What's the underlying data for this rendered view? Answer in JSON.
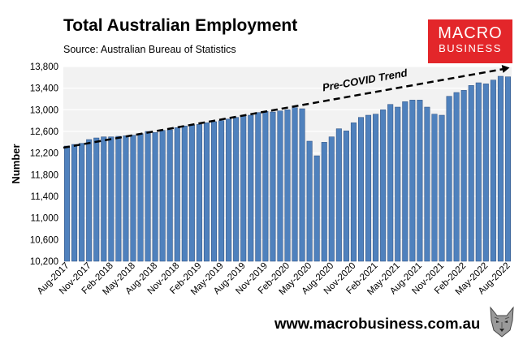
{
  "header": {
    "title": "Total Australian Employment",
    "subtitle": "Source: Australian Bureau of Statistics"
  },
  "logo": {
    "line1": "MACRO",
    "line2": "BUSINESS"
  },
  "footer": {
    "url": "www.macrobusiness.com.au",
    "mascot_icon": "wolf-icon"
  },
  "colors": {
    "bar": "#4f81bd",
    "bar_border": "#2f4f7f",
    "plot_bg": "#f2f2f2",
    "grid": "#ffffff",
    "logo": "#e3262a"
  },
  "chart_data": {
    "type": "bar",
    "title": "Total Australian Employment",
    "ylabel": "Number",
    "xlabel": "",
    "ylim": [
      10200,
      13800
    ],
    "yticks": [
      10200,
      10600,
      11000,
      11400,
      11800,
      12200,
      12600,
      13000,
      13400,
      13800
    ],
    "ytick_labels": [
      "10,200",
      "10,600",
      "11,000",
      "11,400",
      "11,800",
      "12,200",
      "12,600",
      "13,000",
      "13,400",
      "13,800"
    ],
    "grid": true,
    "categories": [
      "Aug-2017",
      "Sep-2017",
      "Oct-2017",
      "Nov-2017",
      "Dec-2017",
      "Jan-2018",
      "Feb-2018",
      "Mar-2018",
      "Apr-2018",
      "May-2018",
      "Jun-2018",
      "Jul-2018",
      "Aug-2018",
      "Sep-2018",
      "Oct-2018",
      "Nov-2018",
      "Dec-2018",
      "Jan-2019",
      "Feb-2019",
      "Mar-2019",
      "Apr-2019",
      "May-2019",
      "Jun-2019",
      "Jul-2019",
      "Aug-2019",
      "Sep-2019",
      "Oct-2019",
      "Nov-2019",
      "Dec-2019",
      "Jan-2020",
      "Feb-2020",
      "Mar-2020",
      "Apr-2020",
      "May-2020",
      "Jun-2020",
      "Jul-2020",
      "Aug-2020",
      "Sep-2020",
      "Oct-2020",
      "Nov-2020",
      "Dec-2020",
      "Jan-2021",
      "Feb-2021",
      "Mar-2021",
      "Apr-2021",
      "May-2021",
      "Jun-2021",
      "Jul-2021",
      "Aug-2021",
      "Sep-2021",
      "Oct-2021",
      "Nov-2021",
      "Dec-2021",
      "Jan-2022",
      "Feb-2022",
      "Mar-2022",
      "Apr-2022",
      "May-2022",
      "Jun-2022",
      "Jul-2022",
      "Aug-2022"
    ],
    "tick_labels": [
      "Aug-2017",
      "Nov-2017",
      "Feb-2018",
      "May-2018",
      "Aug-2018",
      "Nov-2018",
      "Feb-2019",
      "May-2019",
      "Aug-2019",
      "Nov-2019",
      "Feb-2020",
      "May-2020",
      "Aug-2020",
      "Nov-2020",
      "Feb-2021",
      "May-2021",
      "Aug-2021",
      "Nov-2021",
      "Feb-2022",
      "May-2022",
      "Aug-2022"
    ],
    "series": [
      {
        "name": "Employment",
        "values": [
          12330,
          12360,
          12380,
          12450,
          12480,
          12500,
          12500,
          12510,
          12520,
          12530,
          12560,
          12600,
          12580,
          12620,
          12630,
          12670,
          12700,
          12720,
          12730,
          12760,
          12780,
          12800,
          12830,
          12860,
          12880,
          12900,
          12950,
          12970,
          12960,
          12980,
          13000,
          13040,
          13020,
          12420,
          12150,
          12400,
          12500,
          12650,
          12610,
          12760,
          12860,
          12900,
          12920,
          13000,
          13100,
          13050,
          13150,
          13180,
          13180,
          13050,
          12920,
          12900,
          13250,
          13320,
          13360,
          13450,
          13500,
          13480,
          13550,
          13620,
          13610
        ]
      }
    ],
    "annotations": [
      {
        "text": "Pre-COVID Trend",
        "type": "trend-line",
        "from": {
          "x": "Aug-2017",
          "y": 12300
        },
        "to": {
          "x": "Aug-2022",
          "y": 13780
        }
      }
    ]
  }
}
